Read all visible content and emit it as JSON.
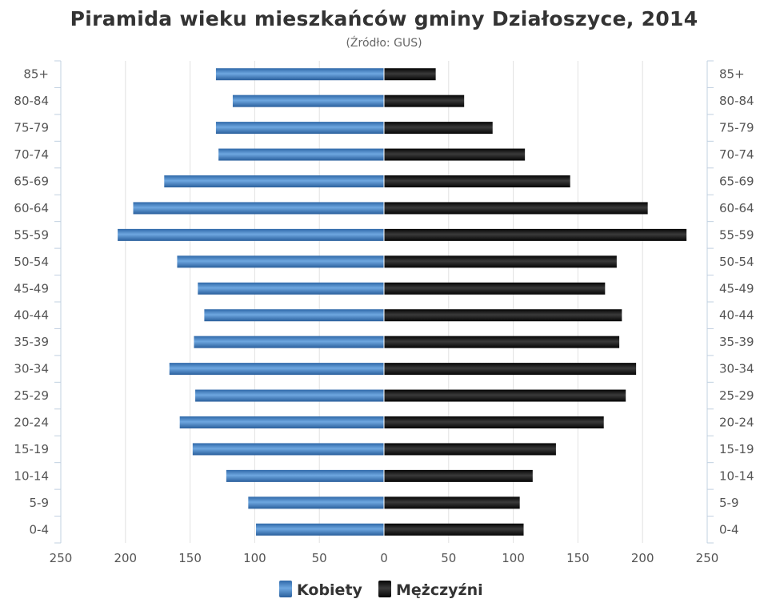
{
  "chart_data": {
    "type": "bar",
    "orientation": "horizontal-population-pyramid",
    "title": "Piramida wieku mieszkańców gminy Działoszyce, 2014",
    "subtitle": "(Źródło: GUS)",
    "categories": [
      "85+",
      "80-84",
      "75-79",
      "70-74",
      "65-69",
      "60-64",
      "55-59",
      "50-54",
      "45-49",
      "40-44",
      "35-39",
      "30-34",
      "25-29",
      "20-24",
      "15-19",
      "10-14",
      "5-9",
      "0-4"
    ],
    "series": [
      {
        "name": "Kobiety",
        "color": "#4a86c8",
        "side": "left",
        "values": [
          130,
          117,
          130,
          128,
          170,
          194,
          206,
          160,
          144,
          139,
          147,
          166,
          146,
          158,
          148,
          122,
          105,
          99
        ]
      },
      {
        "name": "Mężczyźni",
        "color": "#1a1a1a",
        "side": "right",
        "values": [
          40,
          62,
          84,
          109,
          144,
          204,
          234,
          180,
          171,
          184,
          182,
          195,
          187,
          170,
          133,
          115,
          105,
          108
        ]
      }
    ],
    "x_ticks": [
      "250",
      "200",
      "150",
      "100",
      "50",
      "0",
      "50",
      "100",
      "150",
      "200",
      "250"
    ],
    "xlim": [
      -250,
      250
    ],
    "grid": true,
    "legend_position": "bottom-center"
  }
}
